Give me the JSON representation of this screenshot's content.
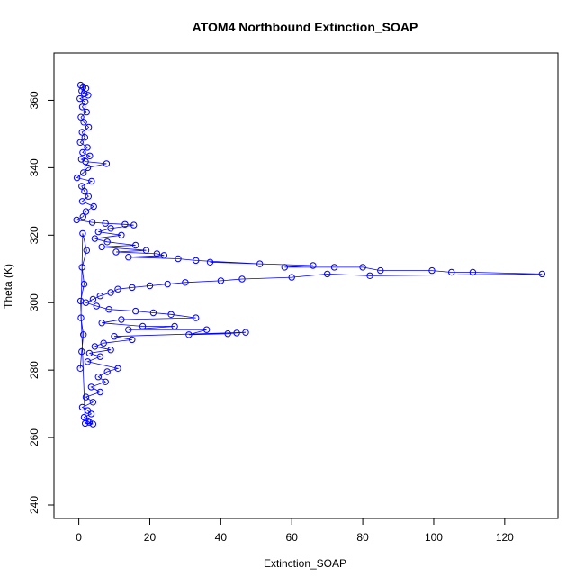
{
  "chart_data": {
    "type": "scatter",
    "title": "ATOM4 Northbound Extinction_SOAP",
    "xlabel": "Extinction_SOAP",
    "ylabel": "Theta (K)",
    "xlim": [
      -7,
      135
    ],
    "ylim": [
      236,
      374
    ],
    "x_ticks": [
      0,
      20,
      40,
      60,
      80,
      100,
      120
    ],
    "y_ticks": [
      240,
      260,
      280,
      300,
      320,
      340,
      360
    ],
    "grid": false,
    "legend": "none",
    "series_color": "#0000ff",
    "series": [
      {
        "points": [
          [
            0.5,
            364.5
          ],
          [
            1.2,
            364.0
          ],
          [
            2.0,
            363.5
          ],
          [
            0.8,
            362.8
          ],
          [
            1.5,
            362.0
          ],
          [
            2.6,
            361.5
          ],
          [
            0.3,
            360.5
          ],
          [
            1.8,
            359.5
          ],
          [
            1.0,
            358.0
          ],
          [
            2.2,
            356.5
          ],
          [
            0.6,
            355.0
          ],
          [
            1.4,
            353.5
          ],
          [
            2.8,
            352.0
          ],
          [
            0.9,
            350.5
          ],
          [
            1.7,
            349.0
          ],
          [
            0.4,
            347.5
          ],
          [
            2.4,
            346.0
          ],
          [
            1.1,
            344.5
          ],
          [
            3.1,
            343.5
          ],
          [
            0.7,
            342.5
          ],
          [
            1.9,
            341.8
          ],
          [
            7.8,
            341.2
          ],
          [
            2.5,
            340.0
          ],
          [
            1.3,
            338.5
          ],
          [
            -0.5,
            337.0
          ],
          [
            3.6,
            336.0
          ],
          [
            0.8,
            334.5
          ],
          [
            1.6,
            333.0
          ],
          [
            2.7,
            331.5
          ],
          [
            1.0,
            330.0
          ],
          [
            4.2,
            328.5
          ],
          [
            2.0,
            327.0
          ],
          [
            1.2,
            325.5
          ],
          [
            -0.6,
            324.5
          ],
          [
            3.8,
            323.8
          ],
          [
            7.5,
            323.5
          ],
          [
            13.0,
            323.2
          ],
          [
            15.5,
            323.0
          ],
          [
            9.0,
            322.0
          ],
          [
            5.5,
            321.0
          ],
          [
            12.0,
            320.0
          ],
          [
            4.5,
            319.0
          ],
          [
            8.0,
            318.0
          ],
          [
            16.0,
            317.0
          ],
          [
            6.5,
            316.5
          ],
          [
            19.0,
            315.5
          ],
          [
            10.5,
            315.0
          ],
          [
            22.0,
            314.5
          ],
          [
            24.0,
            314.0
          ],
          [
            14.0,
            313.5
          ],
          [
            28.0,
            313.0
          ],
          [
            33.0,
            312.5
          ],
          [
            51.0,
            311.5
          ],
          [
            37.0,
            312.0
          ],
          [
            66.0,
            311.0
          ],
          [
            58.0,
            310.5
          ],
          [
            72.0,
            310.5
          ],
          [
            80.0,
            310.5
          ],
          [
            85.0,
            309.5
          ],
          [
            99.5,
            309.5
          ],
          [
            105.0,
            309.0
          ],
          [
            111.0,
            309.0
          ],
          [
            130.5,
            308.5
          ],
          [
            82.0,
            308.0
          ],
          [
            70.0,
            308.5
          ],
          [
            60.0,
            307.5
          ],
          [
            46.0,
            307.0
          ],
          [
            40.0,
            306.5
          ],
          [
            30.0,
            306.0
          ],
          [
            25.0,
            305.5
          ],
          [
            20.0,
            305.0
          ],
          [
            15.0,
            304.5
          ],
          [
            11.0,
            304.0
          ],
          [
            9.0,
            303.0
          ],
          [
            6.0,
            302.0
          ],
          [
            4.0,
            301.0
          ],
          [
            2.0,
            300.0
          ],
          [
            5.0,
            299.0
          ],
          [
            8.5,
            298.0
          ],
          [
            16.0,
            297.5
          ],
          [
            21.0,
            297.0
          ],
          [
            26.0,
            296.5
          ],
          [
            33.0,
            295.5
          ],
          [
            12.0,
            295.0
          ],
          [
            6.5,
            294.0
          ],
          [
            18.0,
            293.0
          ],
          [
            27.0,
            293.0
          ],
          [
            14.0,
            292.0
          ],
          [
            36.0,
            292.0
          ],
          [
            31.0,
            290.5
          ],
          [
            42.0,
            290.8
          ],
          [
            44.5,
            291.0
          ],
          [
            47.0,
            291.2
          ],
          [
            10.0,
            290.0
          ],
          [
            15.0,
            289.0
          ],
          [
            7.0,
            288.0
          ],
          [
            4.5,
            287.0
          ],
          [
            9.0,
            286.0
          ],
          [
            3.0,
            285.0
          ],
          [
            6.0,
            284.0
          ],
          [
            2.5,
            282.5
          ],
          [
            11.0,
            280.5
          ],
          [
            8.0,
            279.5
          ],
          [
            5.5,
            278.0
          ],
          [
            7.5,
            276.5
          ],
          [
            3.5,
            275.0
          ],
          [
            6.0,
            273.5
          ],
          [
            2.0,
            272.0
          ],
          [
            4.0,
            270.5
          ],
          [
            1.0,
            269.0
          ],
          [
            2.5,
            268.0
          ],
          [
            3.5,
            267.0
          ],
          [
            1.5,
            266.0
          ],
          [
            2.5,
            265.0
          ],
          [
            3.0,
            264.5
          ],
          [
            4.0,
            264.0
          ],
          [
            1.8,
            264.2
          ],
          [
            0.5,
            300.5
          ],
          [
            1.5,
            305.5
          ],
          [
            0.9,
            310.5
          ],
          [
            2.2,
            315.5
          ],
          [
            1.1,
            320.5
          ],
          [
            0.6,
            295.5
          ],
          [
            1.3,
            290.5
          ],
          [
            0.8,
            285.5
          ],
          [
            0.4,
            280.5
          ]
        ]
      }
    ]
  }
}
